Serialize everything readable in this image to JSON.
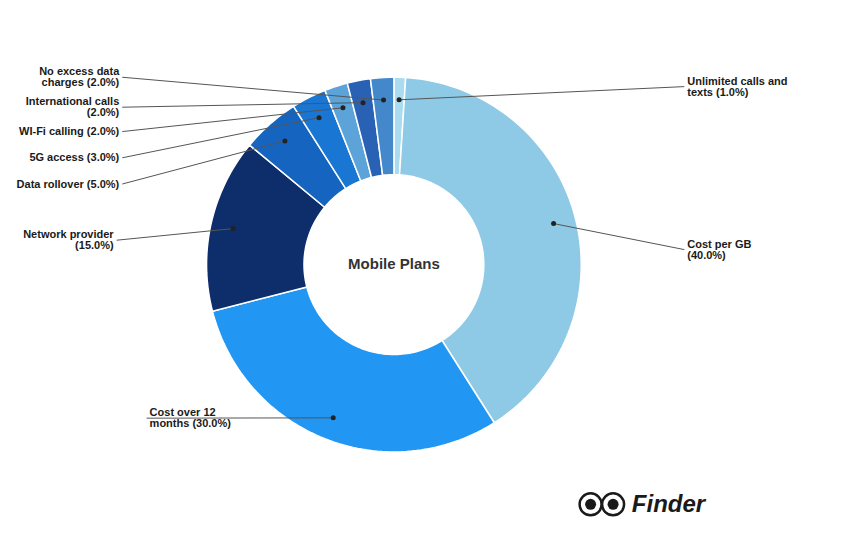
{
  "chart_data": {
    "type": "donut",
    "categories": [
      "Unlimited calls and\ntexts (1.0%)",
      "Cost per GB\n(40.0%)",
      "Cost over 12\nmonths (30.0%)",
      "Network provider\n(15.0%)",
      "Data rollover (5.0%)",
      "5G access (3.0%)",
      "WI-Fi calling (2.0%)",
      "International calls\n(2.0%)",
      "No excess data\ncharges (2.0%)"
    ],
    "values": [
      1.0,
      40.0,
      30.0,
      15.0,
      5.0,
      3.0,
      2.0,
      2.0,
      2.0
    ],
    "colors": [
      "#aadcf0",
      "#8ecae6",
      "#2196f3",
      "#0d2d6b",
      "#1565c0",
      "#1976d2",
      "#5ba3d9",
      "#2962b5",
      "#4488cc"
    ],
    "annotations": [
      "Mobile Plans",
      "Finder"
    ]
  }
}
